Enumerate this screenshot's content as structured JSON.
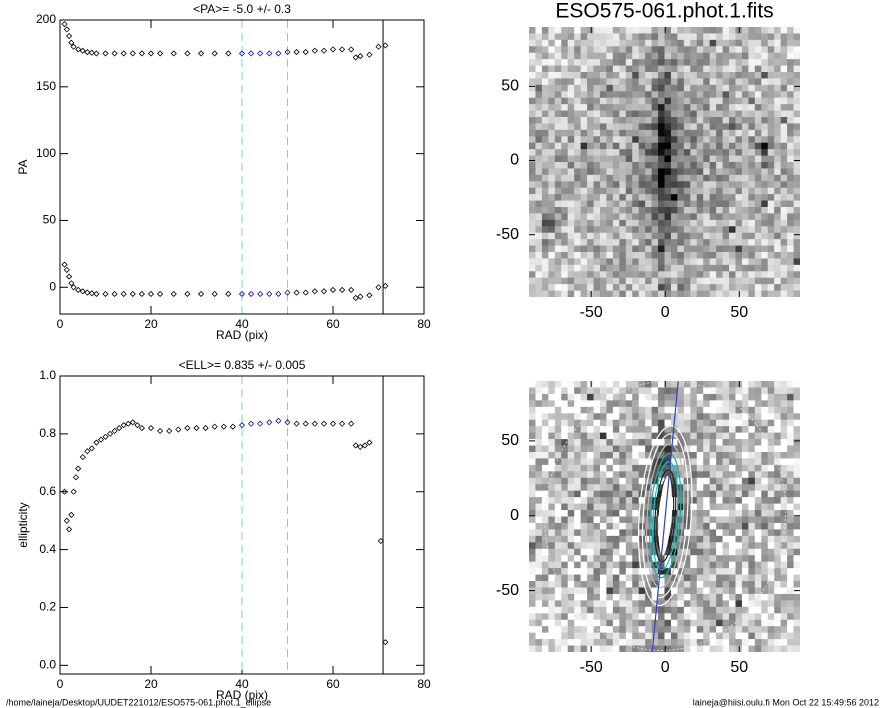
{
  "chart_data": [
    {
      "type": "scatter",
      "title": "<PA>=  -5.0 +/-   0.3",
      "x_label": "RAD (pix)",
      "y_label": "PA",
      "x": [
        1,
        1.5,
        2,
        2.5,
        3,
        4,
        5,
        6,
        7,
        8,
        10,
        12,
        14,
        16,
        18,
        20,
        22,
        25,
        28,
        31,
        34,
        37,
        40,
        42,
        44,
        46,
        48,
        50,
        52,
        54,
        56,
        58,
        60,
        62,
        64,
        65,
        66,
        68,
        70,
        71.5
      ],
      "series": [
        {
          "color": "#000000",
          "values": [
            197,
            193,
            188,
            183,
            180,
            178,
            177,
            176,
            175.5,
            175,
            175,
            175,
            175,
            175,
            175,
            175,
            175,
            175,
            175,
            175,
            175,
            175,
            175,
            175,
            175,
            175,
            175,
            176,
            176,
            176,
            177,
            177,
            178,
            178,
            178,
            172,
            173,
            174,
            180,
            181
          ]
        },
        {
          "color": "#000000",
          "values": [
            17,
            13,
            8,
            3,
            0,
            -2,
            -3,
            -4,
            -4.5,
            -5,
            -5,
            -5,
            -5,
            -5,
            -5,
            -5,
            -5,
            -5,
            -5,
            -5,
            -5,
            -5,
            -5,
            -5,
            -5,
            -5,
            -5,
            -4,
            -4,
            -4,
            -3,
            -3,
            -2,
            -2,
            -2,
            -8,
            -7,
            -6,
            0,
            1
          ]
        }
      ],
      "fit_color": "#1010c0",
      "fit_lines": [
        40,
        50
      ],
      "fit_line_color": "#66dddd",
      "edge_line": 71,
      "xlim": [
        0,
        80
      ],
      "ylim": [
        -20,
        200
      ],
      "xticks": [
        0,
        20,
        40,
        60,
        80
      ],
      "yticks": [
        0,
        50,
        100,
        150,
        200
      ]
    },
    {
      "type": "scatter",
      "title": "<ELL>= 0.835 +/-  0.005",
      "x_label": "RAD (pix)",
      "y_label": "ellipticity",
      "x": [
        1,
        1.5,
        2,
        2.5,
        3,
        3.5,
        4,
        5,
        6,
        7,
        8,
        9,
        10,
        11,
        12,
        13,
        14,
        15,
        16,
        17,
        18,
        20,
        22,
        24,
        26,
        28,
        30,
        32,
        34,
        36,
        38,
        40,
        42,
        44,
        46,
        48,
        50,
        52,
        54,
        56,
        58,
        60,
        62,
        64,
        65,
        66,
        67,
        68,
        70.5,
        71.5
      ],
      "series": [
        {
          "color": "#000000",
          "values": [
            0.6,
            0.5,
            0.47,
            0.52,
            0.6,
            0.65,
            0.68,
            0.72,
            0.74,
            0.75,
            0.77,
            0.78,
            0.79,
            0.8,
            0.81,
            0.82,
            0.83,
            0.835,
            0.84,
            0.83,
            0.82,
            0.82,
            0.81,
            0.81,
            0.815,
            0.82,
            0.82,
            0.82,
            0.825,
            0.825,
            0.825,
            0.83,
            0.835,
            0.835,
            0.84,
            0.845,
            0.84,
            0.835,
            0.835,
            0.835,
            0.835,
            0.835,
            0.835,
            0.835,
            0.76,
            0.755,
            0.76,
            0.77,
            0.43,
            0.08
          ]
        }
      ],
      "fit_color": "#1010c0",
      "fit_lines": [
        40,
        50
      ],
      "fit_line_color": "#66dddd",
      "edge_line": 71,
      "xlim": [
        0,
        80
      ],
      "ylim": [
        -0.03,
        1.0
      ],
      "xticks": [
        0,
        20,
        40,
        60,
        80
      ],
      "yticks": [
        {
          "value": 0,
          "label": "0.0"
        },
        0.2,
        0.4,
        0.6,
        0.8,
        {
          "value": 1,
          "label": "1.0"
        }
      ]
    },
    {
      "type": "image",
      "title": "ESO575-061.phot.1.fits",
      "contours": false,
      "xlim": [
        -92,
        91
      ],
      "ylim": [
        -92,
        90
      ],
      "xticks": [
        -50,
        0,
        50
      ],
      "yticks": [
        -50,
        0,
        50
      ]
    },
    {
      "type": "image",
      "contours": true,
      "xlim": [
        -92,
        91
      ],
      "ylim": [
        -91,
        90
      ],
      "xticks": [
        -50,
        0,
        50
      ],
      "yticks": [
        -50,
        0,
        50
      ]
    }
  ],
  "footer": {
    "path": "/home/laineja/Desktop/UUDET221012/ESO575-061.phot.1_ellipse",
    "stamp": "laineja@hiisi.oulu.fi  Mon Oct 22 15:49:56 2012"
  }
}
